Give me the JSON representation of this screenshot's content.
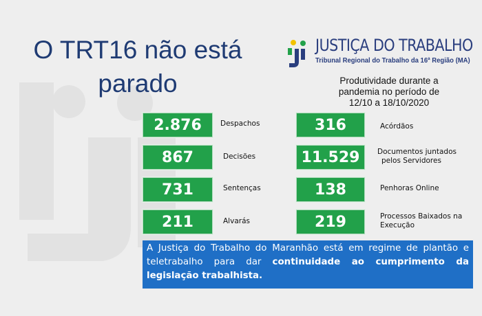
{
  "headline": {
    "line1": "O TRT16 não está",
    "line2": "parado"
  },
  "logo": {
    "title": "JUSTIÇA DO TRABALHO",
    "subtitle": "Tribunal Regional do Trabalho da 16ª Região (MA)",
    "colors": {
      "blue": "#2a3e7e",
      "yellow": "#f2c200",
      "green": "#22a14a"
    }
  },
  "subtitle": {
    "line1": "Produtividade durante a",
    "line2": "pandemia no período de",
    "line3": "12/10 a 18/10/2020"
  },
  "stats": [
    {
      "value": "2.876",
      "label_line1": "Despachos",
      "label_line2": ""
    },
    {
      "value": "316",
      "label_line1": "Acórdãos",
      "label_line2": ""
    },
    {
      "value": "867",
      "label_line1": "Decisões",
      "label_line2": ""
    },
    {
      "value": "11.529",
      "label_line1": "Documentos juntados",
      "label_line2": "pelos Servidores"
    },
    {
      "value": "731",
      "label_line1": "Sentenças",
      "label_line2": ""
    },
    {
      "value": "138",
      "label_line1": "Penhoras Online",
      "label_line2": ""
    },
    {
      "value": "211",
      "label_line1": "Alvarás",
      "label_line2": ""
    },
    {
      "value": "219",
      "label_line1": "Processos Baixados na",
      "label_line2": "Execução"
    }
  ],
  "footer": {
    "text_plain": "A Justiça do Trabalho do Maranhão está em regime de plantão e teletrabalho para dar ",
    "text_bold": "continuidade ao cumprimento da legislação trabalhista."
  },
  "colors": {
    "stat_green": "#22a14a",
    "footer_blue": "#1f6fc6",
    "headline_blue": "#1f3b73",
    "background": "#eeeeee"
  }
}
